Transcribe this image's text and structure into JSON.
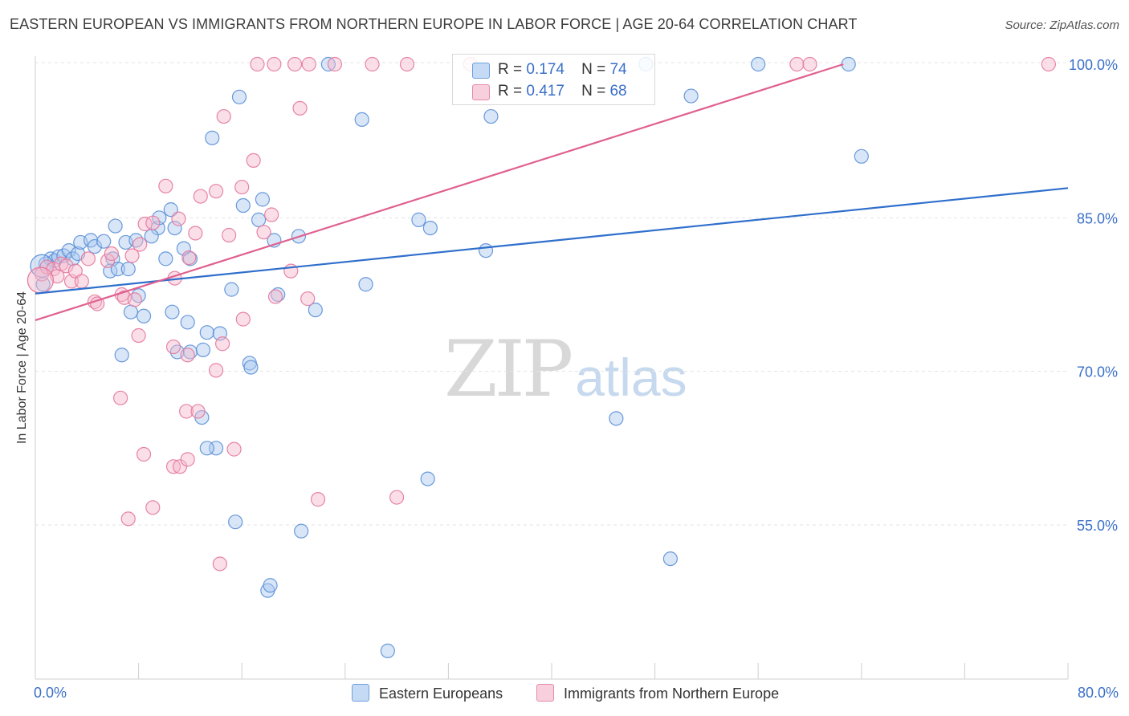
{
  "title": "EASTERN EUROPEAN VS IMMIGRANTS FROM NORTHERN EUROPE IN LABOR FORCE | AGE 20-64 CORRELATION CHART",
  "source": "Source: ZipAtlas.com",
  "watermark": {
    "zip": "ZIP",
    "atlas": "atlas"
  },
  "legend": {
    "rows": [
      {
        "r_label": "R =",
        "r_value": "0.174",
        "n_label": "N =",
        "n_value": "74"
      },
      {
        "r_label": "R =",
        "r_value": "0.417",
        "n_label": "N =",
        "n_value": "68"
      }
    ]
  },
  "chart_data": {
    "type": "scatter",
    "title": "EASTERN EUROPEAN VS IMMIGRANTS FROM NORTHERN EUROPE IN LABOR FORCE | AGE 20-64 CORRELATION CHART",
    "xlabel": "",
    "ylabel": "In Labor Force | Age 20-64",
    "xlim": [
      0,
      80
    ],
    "ylim": [
      40,
      102.5
    ],
    "x_tick_labels": [
      "0.0%",
      "80.0%"
    ],
    "y_ticks": [
      55,
      70,
      85,
      100
    ],
    "y_tick_labels": [
      "55.0%",
      "70.0%",
      "85.0%",
      "100.0%"
    ],
    "grid": true,
    "legend_position": "top-center",
    "colors": {
      "blue": "#5b8fd6",
      "blue_fill": "#a9c8ef",
      "pink": "#e4789c",
      "pink_fill": "#f4b9cd",
      "blue_line": "#2f6fcc",
      "pink_line": "#e0608f",
      "axis_label": "#3a6fc8"
    },
    "series": [
      {
        "name": "Eastern Europeans",
        "color": "#5b8fd6",
        "trend": {
          "x": [
            0,
            80
          ],
          "y": [
            77.6,
            87.9
          ]
        },
        "points": [
          {
            "x": 0.6,
            "y": 78.5
          },
          {
            "x": 0.8,
            "y": 80.5
          },
          {
            "x": 1.2,
            "y": 81.0
          },
          {
            "x": 1.5,
            "y": 80.8
          },
          {
            "x": 1.8,
            "y": 81.2
          },
          {
            "x": 2.2,
            "y": 81.3
          },
          {
            "x": 2.6,
            "y": 81.8
          },
          {
            "x": 2.9,
            "y": 81.0
          },
          {
            "x": 3.3,
            "y": 81.5
          },
          {
            "x": 3.5,
            "y": 82.6
          },
          {
            "x": 4.3,
            "y": 82.8
          },
          {
            "x": 4.6,
            "y": 82.2
          },
          {
            "x": 5.3,
            "y": 82.7
          },
          {
            "x": 6.0,
            "y": 81.0
          },
          {
            "x": 5.8,
            "y": 79.8
          },
          {
            "x": 6.2,
            "y": 84.2
          },
          {
            "x": 6.4,
            "y": 80.0
          },
          {
            "x": 7.0,
            "y": 82.6
          },
          {
            "x": 7.2,
            "y": 80.0
          },
          {
            "x": 8.0,
            "y": 77.4
          },
          {
            "x": 7.8,
            "y": 82.8
          },
          {
            "x": 9.5,
            "y": 84.0
          },
          {
            "x": 9.6,
            "y": 85.0
          },
          {
            "x": 9.0,
            "y": 83.2
          },
          {
            "x": 10.1,
            "y": 81.0
          },
          {
            "x": 10.5,
            "y": 85.8
          },
          {
            "x": 10.8,
            "y": 84.0
          },
          {
            "x": 11.5,
            "y": 82.0
          },
          {
            "x": 12.0,
            "y": 81.0
          },
          {
            "x": 7.4,
            "y": 75.8
          },
          {
            "x": 8.4,
            "y": 75.4
          },
          {
            "x": 10.6,
            "y": 75.8
          },
          {
            "x": 11.8,
            "y": 74.8
          },
          {
            "x": 13.3,
            "y": 73.8
          },
          {
            "x": 6.7,
            "y": 71.6
          },
          {
            "x": 11.0,
            "y": 71.9
          },
          {
            "x": 12.0,
            "y": 71.9
          },
          {
            "x": 13.0,
            "y": 72.1
          },
          {
            "x": 14.3,
            "y": 73.7
          },
          {
            "x": 16.6,
            "y": 70.8
          },
          {
            "x": 16.7,
            "y": 70.4
          },
          {
            "x": 15.2,
            "y": 78.0
          },
          {
            "x": 16.1,
            "y": 86.2
          },
          {
            "x": 17.3,
            "y": 84.8
          },
          {
            "x": 17.6,
            "y": 86.8
          },
          {
            "x": 18.5,
            "y": 82.8
          },
          {
            "x": 18.8,
            "y": 77.5
          },
          {
            "x": 20.4,
            "y": 83.2
          },
          {
            "x": 21.7,
            "y": 76.0
          },
          {
            "x": 25.6,
            "y": 78.5
          },
          {
            "x": 15.8,
            "y": 96.8
          },
          {
            "x": 13.7,
            "y": 92.8
          },
          {
            "x": 22.7,
            "y": 100.0
          },
          {
            "x": 25.3,
            "y": 94.6
          },
          {
            "x": 29.7,
            "y": 84.8
          },
          {
            "x": 30.6,
            "y": 84.0
          },
          {
            "x": 34.9,
            "y": 81.8
          },
          {
            "x": 35.3,
            "y": 94.9
          },
          {
            "x": 47.3,
            "y": 100.0
          },
          {
            "x": 50.8,
            "y": 96.9
          },
          {
            "x": 56.0,
            "y": 100.0
          },
          {
            "x": 63.0,
            "y": 100.0
          },
          {
            "x": 64.0,
            "y": 91.0
          },
          {
            "x": 12.9,
            "y": 65.5
          },
          {
            "x": 14.0,
            "y": 62.5
          },
          {
            "x": 13.3,
            "y": 62.5
          },
          {
            "x": 30.4,
            "y": 59.5
          },
          {
            "x": 45.0,
            "y": 65.4
          },
          {
            "x": 15.5,
            "y": 55.3
          },
          {
            "x": 20.6,
            "y": 54.4
          },
          {
            "x": 49.2,
            "y": 51.7
          },
          {
            "x": 18.0,
            "y": 48.6
          },
          {
            "x": 18.2,
            "y": 49.1
          },
          {
            "x": 27.3,
            "y": 42.7
          }
        ]
      },
      {
        "name": "Immigrants from Northern Europe",
        "color": "#e4789c",
        "trend": {
          "x": [
            0,
            62.6
          ],
          "y": [
            75.0,
            100.0
          ]
        },
        "points": [
          {
            "x": 0.5,
            "y": 79.5
          },
          {
            "x": 0.9,
            "y": 80.2
          },
          {
            "x": 1.4,
            "y": 80.0
          },
          {
            "x": 1.7,
            "y": 79.3
          },
          {
            "x": 2.0,
            "y": 80.5
          },
          {
            "x": 2.4,
            "y": 80.3
          },
          {
            "x": 2.8,
            "y": 78.8
          },
          {
            "x": 3.1,
            "y": 79.8
          },
          {
            "x": 3.6,
            "y": 78.8
          },
          {
            "x": 4.1,
            "y": 81.0
          },
          {
            "x": 4.6,
            "y": 76.8
          },
          {
            "x": 4.8,
            "y": 76.6
          },
          {
            "x": 5.6,
            "y": 80.8
          },
          {
            "x": 5.9,
            "y": 81.5
          },
          {
            "x": 6.7,
            "y": 77.5
          },
          {
            "x": 6.9,
            "y": 77.2
          },
          {
            "x": 7.7,
            "y": 77.0
          },
          {
            "x": 8.1,
            "y": 82.4
          },
          {
            "x": 7.5,
            "y": 81.3
          },
          {
            "x": 8.5,
            "y": 84.4
          },
          {
            "x": 9.1,
            "y": 84.5
          },
          {
            "x": 10.1,
            "y": 88.1
          },
          {
            "x": 10.8,
            "y": 79.1
          },
          {
            "x": 11.1,
            "y": 84.9
          },
          {
            "x": 11.9,
            "y": 81.1
          },
          {
            "x": 12.8,
            "y": 87.1
          },
          {
            "x": 12.4,
            "y": 83.5
          },
          {
            "x": 14.0,
            "y": 87.6
          },
          {
            "x": 14.6,
            "y": 94.9
          },
          {
            "x": 15.0,
            "y": 83.3
          },
          {
            "x": 16.0,
            "y": 88.0
          },
          {
            "x": 16.9,
            "y": 90.6
          },
          {
            "x": 17.7,
            "y": 83.6
          },
          {
            "x": 18.3,
            "y": 85.3
          },
          {
            "x": 18.6,
            "y": 77.3
          },
          {
            "x": 19.8,
            "y": 79.8
          },
          {
            "x": 20.5,
            "y": 95.7
          },
          {
            "x": 21.1,
            "y": 77.1
          },
          {
            "x": 16.1,
            "y": 75.1
          },
          {
            "x": 14.5,
            "y": 72.7
          },
          {
            "x": 10.7,
            "y": 72.4
          },
          {
            "x": 11.8,
            "y": 71.6
          },
          {
            "x": 14.0,
            "y": 70.1
          },
          {
            "x": 8.0,
            "y": 73.5
          },
          {
            "x": 6.6,
            "y": 67.4
          },
          {
            "x": 11.7,
            "y": 66.1
          },
          {
            "x": 12.6,
            "y": 66.1
          },
          {
            "x": 8.4,
            "y": 61.9
          },
          {
            "x": 10.7,
            "y": 60.7
          },
          {
            "x": 11.2,
            "y": 60.7
          },
          {
            "x": 11.8,
            "y": 61.4
          },
          {
            "x": 15.4,
            "y": 62.4
          },
          {
            "x": 9.1,
            "y": 56.7
          },
          {
            "x": 7.2,
            "y": 55.6
          },
          {
            "x": 14.3,
            "y": 51.2
          },
          {
            "x": 21.9,
            "y": 57.5
          },
          {
            "x": 28.0,
            "y": 57.7
          },
          {
            "x": 20.1,
            "y": 100.0
          },
          {
            "x": 21.2,
            "y": 100.0
          },
          {
            "x": 23.2,
            "y": 100.0
          },
          {
            "x": 26.1,
            "y": 100.0
          },
          {
            "x": 28.8,
            "y": 100.0
          },
          {
            "x": 33.7,
            "y": 100.0
          },
          {
            "x": 18.5,
            "y": 100.0
          },
          {
            "x": 17.2,
            "y": 100.0
          },
          {
            "x": 59.0,
            "y": 100.0
          },
          {
            "x": 60.0,
            "y": 100.0
          },
          {
            "x": 78.5,
            "y": 100.0
          }
        ]
      }
    ]
  },
  "bottom_legend": [
    "Eastern Europeans",
    "Immigrants from Northern Europe"
  ]
}
